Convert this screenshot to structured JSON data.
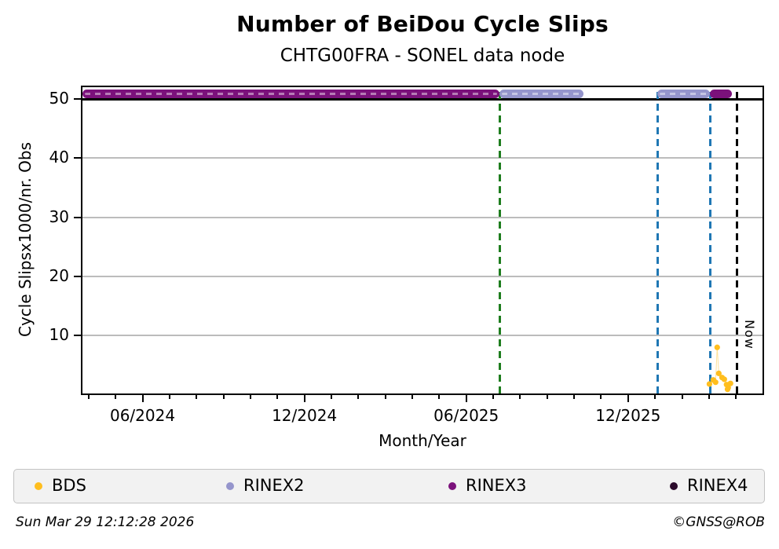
{
  "header": {
    "title": "Number of BeiDou Cycle Slips",
    "subtitle": "CHTG00FRA - SONEL data node"
  },
  "footer": {
    "timestamp": "Sun Mar 29 12:12:28 2026",
    "credit": "©GNSS@ROB"
  },
  "legend": {
    "items": [
      {
        "label": "BDS",
        "color": "#FFBE1E",
        "icon": "bds-dot-icon"
      },
      {
        "label": "RINEX2",
        "color": "#9595CC",
        "icon": "rinex2-dot-icon"
      },
      {
        "label": "RINEX3",
        "color": "#7B117B",
        "icon": "rinex3-dot-icon"
      },
      {
        "label": "RINEX4",
        "color": "#2B0A2B",
        "icon": "rinex4-dot-icon"
      }
    ]
  },
  "chart_data": {
    "type": "scatter",
    "title": "Number of BeiDou Cycle Slips",
    "subtitle": "CHTG00FRA - SONEL data node",
    "xlabel": "Month/Year",
    "ylabel": "Cycle Slipsx1000/nr. Obs",
    "x_axis_unit": "decimal_year",
    "xlim": [
      2024.231,
      2026.332
    ],
    "ylim": [
      0.2,
      52.0
    ],
    "y_ticks": [
      10,
      20,
      30,
      40,
      50
    ],
    "y_gridlines": [
      10,
      20,
      30,
      40
    ],
    "reference_line_y": 50,
    "x_major_ticks": [
      {
        "label": "06/2024",
        "t": 2024.4167
      },
      {
        "label": "12/2024",
        "t": 2024.9167
      },
      {
        "label": "06/2025",
        "t": 2025.4167
      },
      {
        "label": "12/2025",
        "t": 2025.9167
      }
    ],
    "x_minor_tick_every_months": 1,
    "availability_bars": [
      {
        "name": "RINEX3",
        "color": "#7B117B",
        "t_start": 2024.231,
        "t_end": 2025.52,
        "value": 50.9,
        "dashed_overlay": true
      },
      {
        "name": "RINEX2",
        "color": "#9595CC",
        "t_start": 2025.52,
        "t_end": 2025.78,
        "value": 50.9,
        "dashed_overlay": true
      },
      {
        "name": "RINEX2",
        "color": "#9595CC",
        "t_start": 2026.008,
        "t_end": 2026.17,
        "value": 50.9,
        "dashed_overlay": true
      },
      {
        "name": "RINEX3",
        "color": "#7B117B",
        "t_start": 2026.17,
        "t_end": 2026.238,
        "value": 50.9,
        "dashed_overlay": false
      }
    ],
    "vlines": [
      {
        "name": "green-event-line",
        "color": "#1E7D1E",
        "t": 2025.52,
        "style": "dashed"
      },
      {
        "name": "blue-event-line-1",
        "color": "#1F77B4",
        "t": 2026.008,
        "style": "dashed"
      },
      {
        "name": "blue-event-line-2",
        "color": "#1F77B4",
        "t": 2026.17,
        "style": "dashed"
      },
      {
        "name": "now-line",
        "color": "#000000",
        "t": 2026.252,
        "style": "dashed",
        "label": "Now"
      }
    ],
    "now_label": "Now",
    "series": [
      {
        "name": "BDS",
        "color": "#FFBE1E",
        "marker": "circle",
        "points": [
          {
            "t": 2026.168,
            "v": 1.8
          },
          {
            "t": 2026.18,
            "v": 2.5
          },
          {
            "t": 2026.187,
            "v": 2.1
          },
          {
            "t": 2026.192,
            "v": 8.0
          },
          {
            "t": 2026.197,
            "v": 3.6
          },
          {
            "t": 2026.207,
            "v": 2.9
          },
          {
            "t": 2026.214,
            "v": 2.6
          },
          {
            "t": 2026.221,
            "v": 1.7
          },
          {
            "t": 2026.224,
            "v": 0.9
          },
          {
            "t": 2026.226,
            "v": 1.2
          },
          {
            "t": 2026.233,
            "v": 1.9
          }
        ]
      }
    ]
  }
}
